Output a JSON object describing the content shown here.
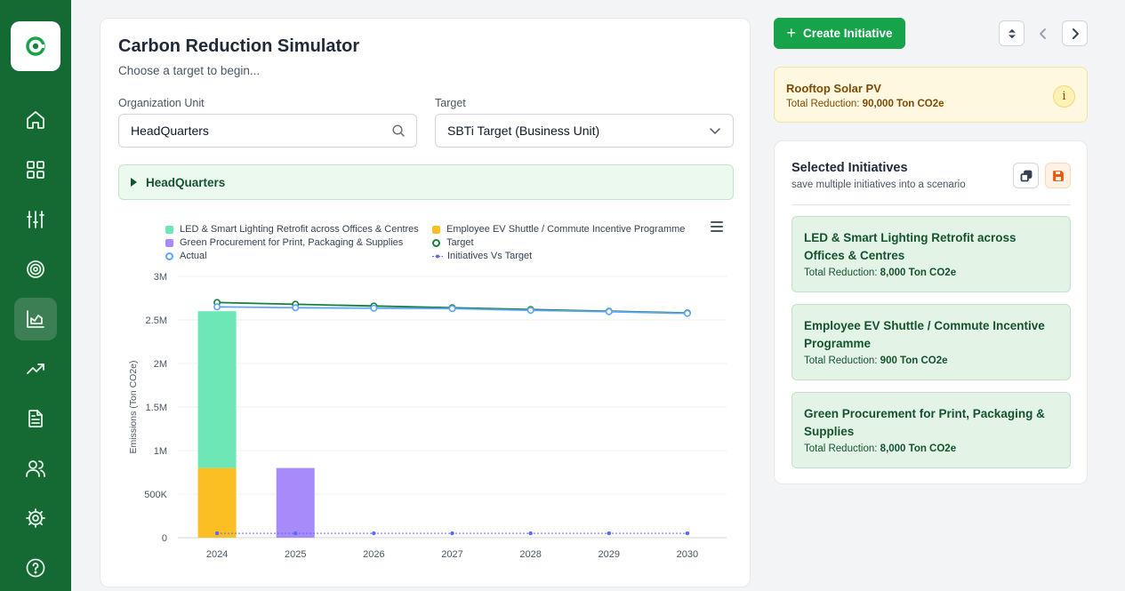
{
  "sidebar": {
    "items": [
      {
        "name": "home-icon"
      },
      {
        "name": "dashboard-grid-icon"
      },
      {
        "name": "sliders-icon"
      },
      {
        "name": "target-icon"
      },
      {
        "name": "chart-area-icon",
        "active": true
      },
      {
        "name": "trending-up-icon"
      },
      {
        "name": "document-icon"
      },
      {
        "name": "users-icon"
      },
      {
        "name": "settings-icon"
      },
      {
        "name": "help-icon"
      }
    ]
  },
  "simulator": {
    "title": "Carbon Reduction Simulator",
    "subtitle": "Choose a target to begin...",
    "org_unit_label": "Organization Unit",
    "org_unit_value": "HeadQuarters",
    "target_label": "Target",
    "target_value": "SBTi Target (Business Unit)",
    "tree_node": "HeadQuarters"
  },
  "chart_data": {
    "type": "bar",
    "categories": [
      "2024",
      "2025",
      "2026",
      "2027",
      "2028",
      "2029",
      "2030"
    ],
    "ylabel": "Emissions (Ton CO2e)",
    "ylim": [
      0,
      3000000
    ],
    "yticks": [
      {
        "value": 0,
        "label": "0"
      },
      {
        "value": 500000,
        "label": "500K"
      },
      {
        "value": 1000000,
        "label": "1M"
      },
      {
        "value": 1500000,
        "label": "1.5M"
      },
      {
        "value": 2000000,
        "label": "2M"
      },
      {
        "value": 2500000,
        "label": "2.5M"
      },
      {
        "value": 3000000,
        "label": "3M"
      }
    ],
    "series": [
      {
        "name": "LED & Smart Lighting Retrofit across Offices & Centres",
        "kind": "stacked-bar",
        "color": "#6ee7b7",
        "values": [
          1800000,
          0,
          0,
          0,
          0,
          0,
          0
        ]
      },
      {
        "name": "Employee EV Shuttle / Commute Incentive Programme",
        "kind": "stacked-bar",
        "color": "#fbbf24",
        "values": [
          800000,
          0,
          0,
          0,
          0,
          0,
          0
        ]
      },
      {
        "name": "Green Procurement for Print, Packaging & Supplies",
        "kind": "stacked-bar",
        "color": "#a78bfa",
        "values": [
          0,
          800000,
          0,
          0,
          0,
          0,
          0
        ]
      },
      {
        "name": "Target",
        "kind": "line",
        "color": "#15803d",
        "values": [
          2700000,
          2680000,
          2660000,
          2640000,
          2620000,
          2600000,
          2580000
        ]
      },
      {
        "name": "Actual",
        "kind": "line",
        "color": "#60a5fa",
        "values": [
          2650000,
          2640000,
          2635000,
          2630000,
          2610000,
          2595000,
          2575000
        ]
      },
      {
        "name": "Initiatives Vs Target",
        "kind": "dotted-line",
        "color": "#6366f1",
        "values": [
          50000,
          50000,
          50000,
          50000,
          50000,
          50000,
          50000
        ]
      }
    ]
  },
  "toolbar": {
    "create_label": "Create Initiative"
  },
  "highlight": {
    "title": "Rooftop Solar PV",
    "reduction_label": "Total Reduction:",
    "reduction_value": "90,000 Ton CO2e"
  },
  "selected": {
    "title": "Selected Initiatives",
    "subtitle": "save multiple initiatives into a scenario",
    "items": [
      {
        "name": "LED & Smart Lighting Retrofit across Offices & Centres",
        "reduction_label": "Total Reduction:",
        "reduction_value": "8,000 Ton CO2e"
      },
      {
        "name": "Employee EV Shuttle / Commute Incentive Programme",
        "reduction_label": "Total Reduction:",
        "reduction_value": "900 Ton CO2e"
      },
      {
        "name": "Green Procurement for Print, Packaging & Supplies",
        "reduction_label": "Total Reduction:",
        "reduction_value": "8,000 Ton CO2e"
      }
    ]
  }
}
